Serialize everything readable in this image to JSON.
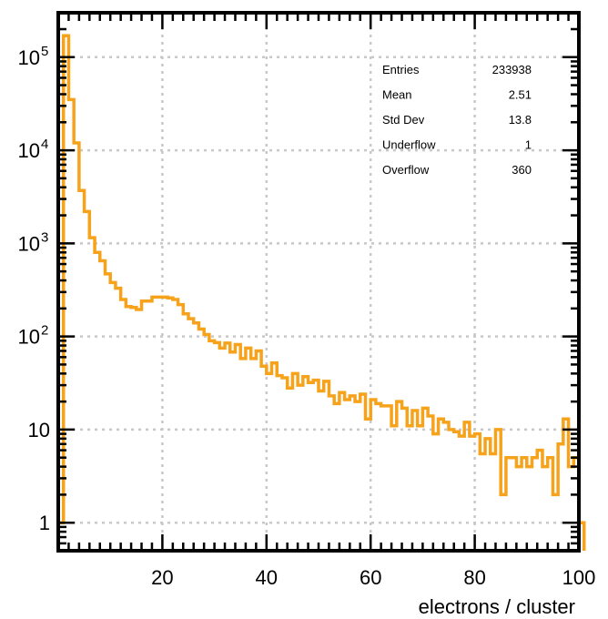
{
  "chart_data": {
    "type": "histogram",
    "title": "",
    "xlabel": "electrons / cluster",
    "ylabel": "",
    "xlim": [
      0,
      100
    ],
    "ylim": [
      0.5,
      300000
    ],
    "y_scale": "log",
    "grid": true,
    "line_color": "#f7a21b",
    "x_ticks": [
      {
        "value": 20,
        "label": "20"
      },
      {
        "value": 40,
        "label": "40"
      },
      {
        "value": 60,
        "label": "60"
      },
      {
        "value": 80,
        "label": "80"
      },
      {
        "value": 100,
        "label": "100"
      }
    ],
    "y_ticks": [
      {
        "value": 1,
        "label": "1",
        "sup": ""
      },
      {
        "value": 10,
        "label": "10",
        "sup": ""
      },
      {
        "value": 100,
        "label": "10",
        "sup": "2"
      },
      {
        "value": 1000,
        "label": "10",
        "sup": "3"
      },
      {
        "value": 10000,
        "label": "10",
        "sup": "4"
      },
      {
        "value": 100000,
        "label": "10",
        "sup": "5"
      }
    ],
    "bin_width": 1,
    "x_start": 0,
    "values": [
      1,
      170000,
      35000,
      12000,
      3700,
      2200,
      1150,
      800,
      650,
      470,
      380,
      330,
      250,
      210,
      205,
      195,
      240,
      240,
      265,
      265,
      265,
      260,
      250,
      220,
      175,
      155,
      140,
      120,
      105,
      90,
      86,
      75,
      85,
      68,
      82,
      58,
      75,
      58,
      70,
      48,
      40,
      52,
      38,
      36,
      28,
      40,
      30,
      37,
      32,
      34,
      26,
      33,
      23,
      19,
      25,
      21,
      23,
      20,
      24,
      13,
      21,
      19,
      18,
      18,
      11,
      20,
      17,
      11,
      16,
      11,
      17,
      14,
      9,
      13,
      12,
      10,
      9.5,
      8.5,
      12,
      8.5,
      9,
      5.5,
      8,
      5.5,
      10,
      2,
      5,
      5,
      4,
      5,
      4,
      5,
      6,
      4,
      5,
      2,
      7,
      13,
      4,
      5,
      1
    ]
  },
  "stats_box": [
    {
      "label": "Entries",
      "value": "233938"
    },
    {
      "label": "Mean",
      "value": "2.51"
    },
    {
      "label": "Std Dev",
      "value": "13.8"
    },
    {
      "label": "Underflow",
      "value": "1"
    },
    {
      "label": "Overflow",
      "value": "360"
    }
  ]
}
